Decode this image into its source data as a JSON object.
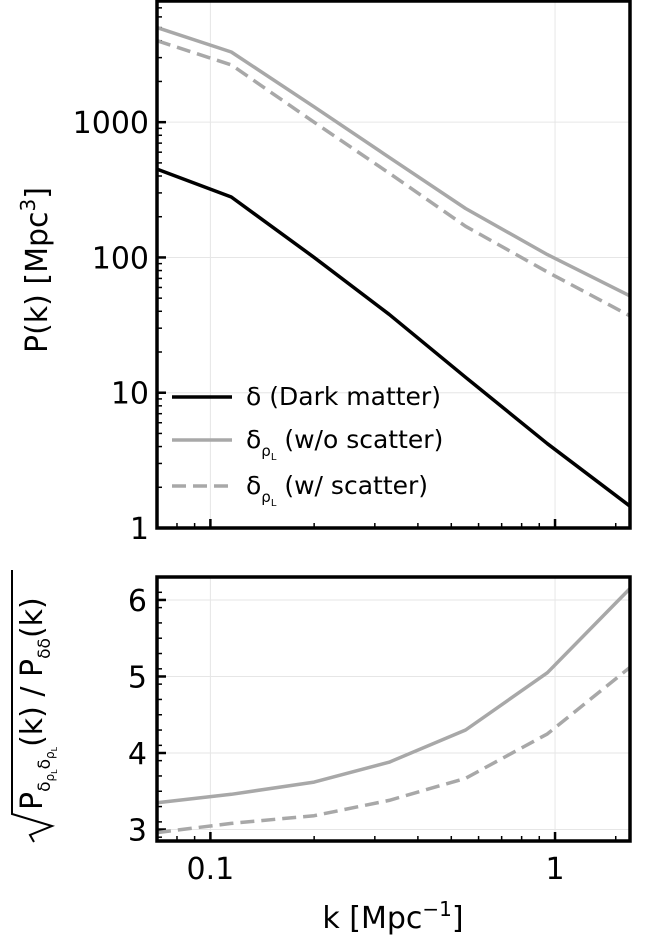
{
  "chart_data": [
    {
      "type": "line",
      "panel": "top",
      "yscale": "log",
      "xscale": "log",
      "ylabel": "P(k) [Mpc",
      "ylabel_sup": "3",
      "ylabel_close": "]",
      "xlim": [
        0.07,
        1.65
      ],
      "ylim": [
        1,
        8000
      ],
      "grid": true,
      "yticks": [
        1,
        10,
        100,
        1000
      ],
      "ytick_labels": [
        "1",
        "10",
        "100",
        "1000"
      ],
      "legend_position": "lower-left",
      "series": [
        {
          "name": "δ  (Dark matter)",
          "color": "#000000",
          "dash": "solid",
          "x": [
            0.07,
            0.115,
            0.2,
            0.33,
            0.55,
            0.95,
            1.65
          ],
          "y": [
            450,
            280,
            100,
            38,
            13,
            4.2,
            1.45
          ]
        },
        {
          "name": "δρL  (w/o scatter)",
          "color": "#a8a8a8",
          "dash": "solid",
          "x": [
            0.07,
            0.115,
            0.2,
            0.33,
            0.55,
            0.95,
            1.65
          ],
          "y": [
            5000,
            3300,
            1300,
            550,
            230,
            105,
            52
          ]
        },
        {
          "name": "δρL  (w/ scatter)",
          "color": "#a8a8a8",
          "dash": "dashed",
          "x": [
            0.07,
            0.115,
            0.2,
            0.33,
            0.55,
            0.95,
            1.65
          ],
          "y": [
            4000,
            2650,
            1000,
            420,
            170,
            78,
            37
          ]
        }
      ],
      "legend": [
        {
          "main": "δ",
          "sub": "",
          "subsub": "",
          "rest": "  (Dark matter)"
        },
        {
          "main": "δ",
          "sub": "ρ",
          "subsub": "L",
          "rest": "  (w/o scatter)"
        },
        {
          "main": "δ",
          "sub": "ρ",
          "subsub": "L",
          "rest": "  (w/ scatter)"
        }
      ]
    },
    {
      "type": "line",
      "panel": "bottom",
      "xscale": "log",
      "yscale": "linear",
      "xlabel": "k [Mpc",
      "xlabel_sup": "−1",
      "xlabel_close": "]",
      "ylabel": "√(P_{δρLδρL}(k) / P_{δδ}(k))",
      "xlim": [
        0.07,
        1.65
      ],
      "ylim": [
        2.85,
        6.3
      ],
      "grid": true,
      "xticks": [
        0.1,
        1
      ],
      "xtick_labels": [
        "0.1",
        "1"
      ],
      "yticks": [
        3,
        4,
        5,
        6
      ],
      "ytick_labels": [
        "3",
        "4",
        "5",
        "6"
      ],
      "series": [
        {
          "color": "#a8a8a8",
          "dash": "solid",
          "x": [
            0.07,
            0.115,
            0.2,
            0.33,
            0.55,
            0.95,
            1.65
          ],
          "y": [
            3.35,
            3.46,
            3.62,
            3.88,
            4.3,
            5.05,
            6.15
          ]
        },
        {
          "color": "#a8a8a8",
          "dash": "dashed",
          "x": [
            0.07,
            0.115,
            0.2,
            0.33,
            0.55,
            0.95,
            1.65
          ],
          "y": [
            2.96,
            3.08,
            3.18,
            3.38,
            3.67,
            4.25,
            5.12
          ]
        }
      ]
    }
  ]
}
